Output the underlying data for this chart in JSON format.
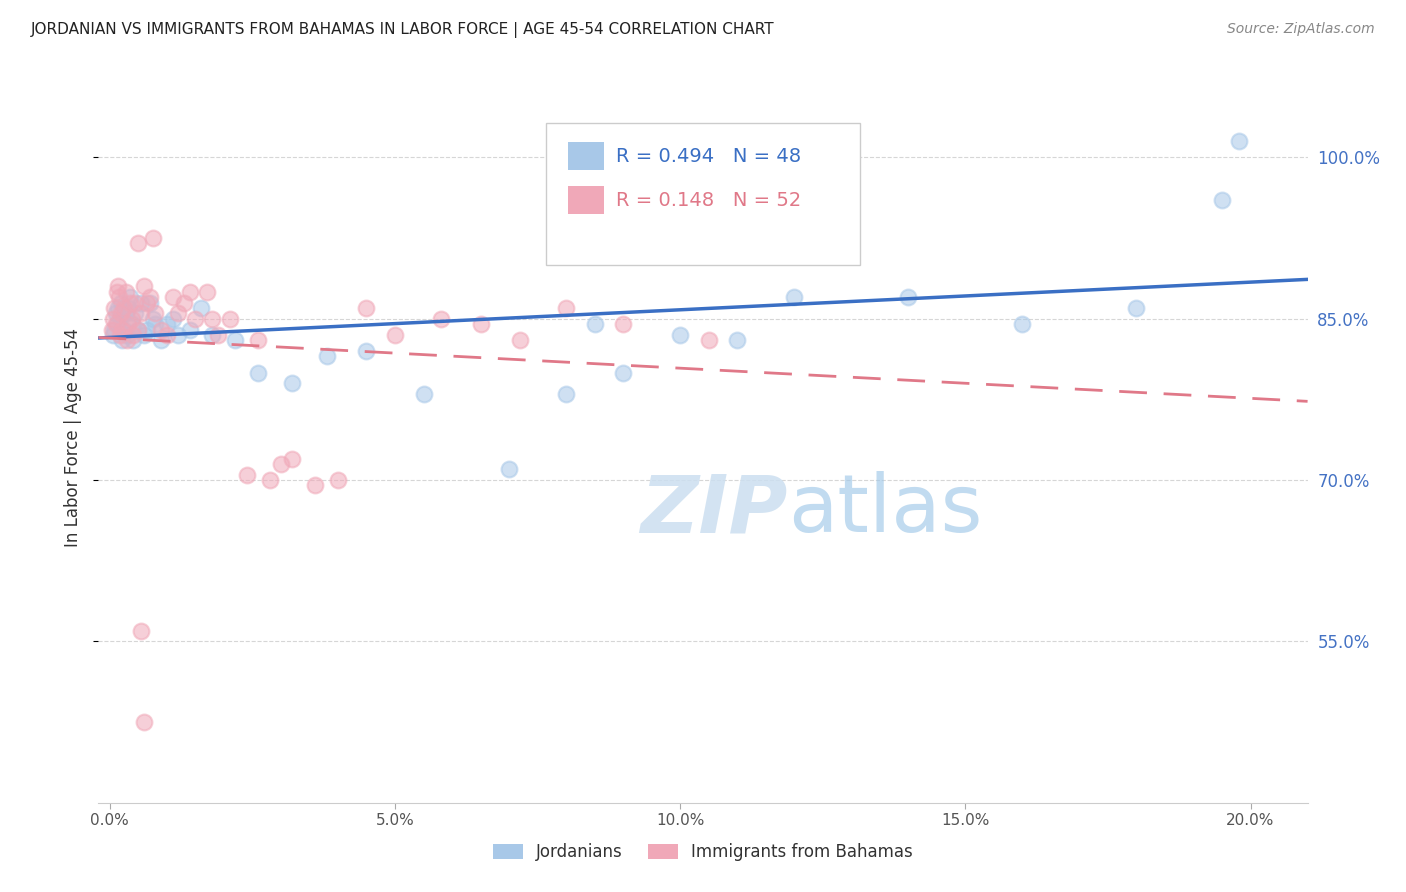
{
  "title": "JORDANIAN VS IMMIGRANTS FROM BAHAMAS IN LABOR FORCE | AGE 45-54 CORRELATION CHART",
  "source": "Source: ZipAtlas.com",
  "ylabel": "In Labor Force | Age 45-54",
  "ylabel_ticks_labels": [
    "55.0%",
    "70.0%",
    "85.0%",
    "100.0%"
  ],
  "ylabel_ticks_vals": [
    55.0,
    70.0,
    85.0,
    100.0
  ],
  "xticks_labels": [
    "0.0%",
    "5.0%",
    "10.0%",
    "15.0%",
    "20.0%"
  ],
  "xticks_vals": [
    0.0,
    5.0,
    10.0,
    15.0,
    20.0
  ],
  "ylim": [
    40.0,
    108.0
  ],
  "xlim": [
    -0.2,
    21.0
  ],
  "blue_R": 0.494,
  "blue_N": 48,
  "pink_R": 0.148,
  "pink_N": 52,
  "blue_scatter_color": "#a8c8e8",
  "pink_scatter_color": "#f0a8b8",
  "blue_line_color": "#3a6fc4",
  "pink_line_color": "#e07888",
  "right_axis_color": "#4472c4",
  "grid_color": "#cccccc",
  "legend_label_blue": "Jordanians",
  "legend_label_pink": "Immigrants from Bahamas",
  "watermark_zip": "ZIP",
  "watermark_atlas": "atlas",
  "background_color": "#ffffff",
  "blue_x": [
    0.05,
    0.08,
    0.1,
    0.12,
    0.15,
    0.18,
    0.2,
    0.22,
    0.25,
    0.28,
    0.3,
    0.32,
    0.35,
    0.38,
    0.4,
    0.45,
    0.5,
    0.55,
    0.6,
    0.65,
    0.7,
    0.75,
    0.8,
    0.9,
    1.0,
    1.1,
    1.2,
    1.4,
    1.6,
    1.8,
    2.2,
    2.6,
    3.2,
    3.8,
    4.5,
    5.5,
    7.0,
    8.0,
    8.5,
    9.0,
    10.0,
    11.0,
    12.0,
    14.0,
    16.0,
    18.0,
    19.5,
    19.8
  ],
  "blue_y": [
    83.5,
    84.0,
    85.5,
    84.5,
    86.0,
    85.0,
    86.5,
    83.0,
    84.0,
    85.5,
    83.5,
    86.0,
    87.0,
    84.5,
    83.0,
    85.5,
    84.0,
    86.5,
    83.5,
    84.0,
    86.5,
    85.0,
    84.5,
    83.0,
    84.5,
    85.0,
    83.5,
    84.0,
    86.0,
    83.5,
    83.0,
    80.0,
    79.0,
    81.5,
    82.0,
    78.0,
    71.0,
    78.0,
    84.5,
    80.0,
    83.5,
    83.0,
    87.0,
    87.0,
    84.5,
    86.0,
    96.0,
    101.5
  ],
  "pink_x": [
    0.03,
    0.06,
    0.08,
    0.1,
    0.12,
    0.14,
    0.16,
    0.18,
    0.2,
    0.22,
    0.25,
    0.28,
    0.3,
    0.32,
    0.35,
    0.38,
    0.4,
    0.45,
    0.5,
    0.55,
    0.6,
    0.65,
    0.7,
    0.8,
    0.9,
    1.0,
    1.1,
    1.3,
    1.5,
    1.7,
    1.9,
    2.1,
    2.4,
    2.8,
    3.2,
    3.6,
    4.0,
    4.5,
    5.0,
    5.8,
    6.5,
    7.2,
    8.0,
    9.0,
    10.5,
    1.2,
    1.4,
    1.8,
    2.6,
    3.0,
    0.5,
    0.75
  ],
  "pink_y": [
    84.0,
    85.0,
    86.0,
    84.5,
    87.5,
    88.0,
    87.0,
    83.5,
    85.5,
    84.0,
    86.0,
    87.5,
    83.0,
    84.5,
    86.5,
    85.0,
    83.5,
    86.5,
    84.0,
    85.5,
    88.0,
    86.5,
    87.0,
    85.5,
    84.0,
    83.5,
    87.0,
    86.5,
    85.0,
    87.5,
    83.5,
    85.0,
    70.5,
    70.0,
    72.0,
    69.5,
    70.0,
    86.0,
    83.5,
    85.0,
    84.5,
    83.0,
    86.0,
    84.5,
    83.0,
    85.5,
    87.5,
    85.0,
    83.0,
    71.5,
    92.0,
    92.5
  ]
}
